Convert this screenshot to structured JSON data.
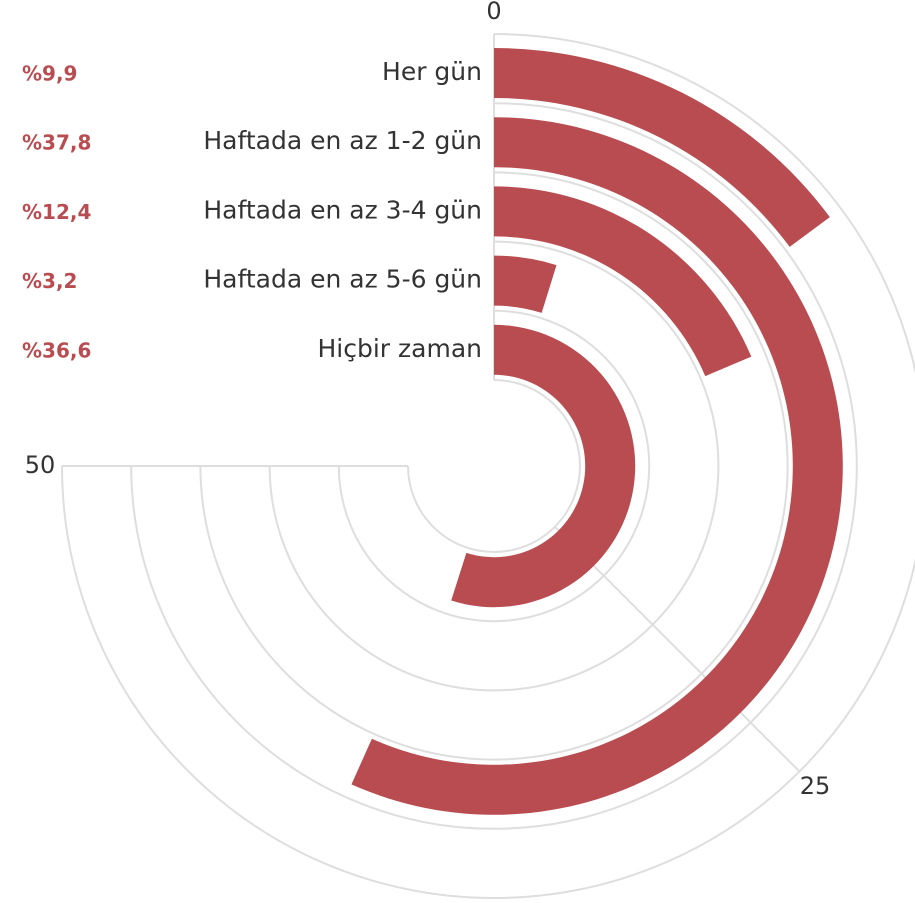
{
  "chart_data": {
    "type": "radial_bar",
    "categories": [
      "Her gün",
      "Haftada en az 1-2 gün",
      "Haftada en az 3-4 gün",
      "Haftada en az 5-6 gün",
      "Hiçbir zaman"
    ],
    "values": [
      9.9,
      37.8,
      12.4,
      3.2,
      36.6
    ],
    "value_labels": [
      "%9,9",
      "%37,8",
      "%12,4",
      "%3,2",
      "%36,6"
    ],
    "color": "#b94c50",
    "xlim": [
      0,
      50
    ],
    "xticks": [
      0,
      25,
      50
    ],
    "grid": true
  }
}
